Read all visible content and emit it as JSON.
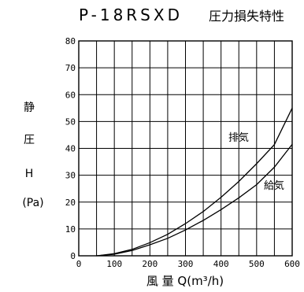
{
  "chart_data": {
    "type": "line",
    "title_model": "P-18RSXD",
    "title_text": "圧力損失特性",
    "ylabel_lines": [
      "静",
      "圧",
      "H",
      "(Pa)"
    ],
    "xlabel": "風 量 Q(m³/h)",
    "xlim": [
      0,
      600
    ],
    "ylim": [
      0,
      80
    ],
    "x_ticks": [
      0,
      100,
      200,
      300,
      400,
      500,
      600
    ],
    "y_ticks": [
      0,
      10,
      20,
      30,
      40,
      50,
      60,
      70,
      80
    ],
    "grid": true,
    "series": [
      {
        "name": "排気",
        "x": [
          50,
          100,
          150,
          200,
          250,
          300,
          350,
          400,
          450,
          500,
          550,
          600
        ],
        "y": [
          0,
          0.8,
          2.4,
          4.9,
          8.0,
          12.0,
          16.5,
          21.8,
          27.7,
          34.3,
          41.4,
          55.0
        ]
      },
      {
        "name": "給気",
        "x": [
          50,
          100,
          150,
          200,
          250,
          300,
          350,
          400,
          450,
          500,
          550,
          600
        ],
        "y": [
          0,
          0.6,
          2.0,
          4.1,
          6.5,
          9.6,
          13.2,
          17.2,
          21.6,
          26.5,
          33.0,
          41.5
        ]
      }
    ]
  }
}
